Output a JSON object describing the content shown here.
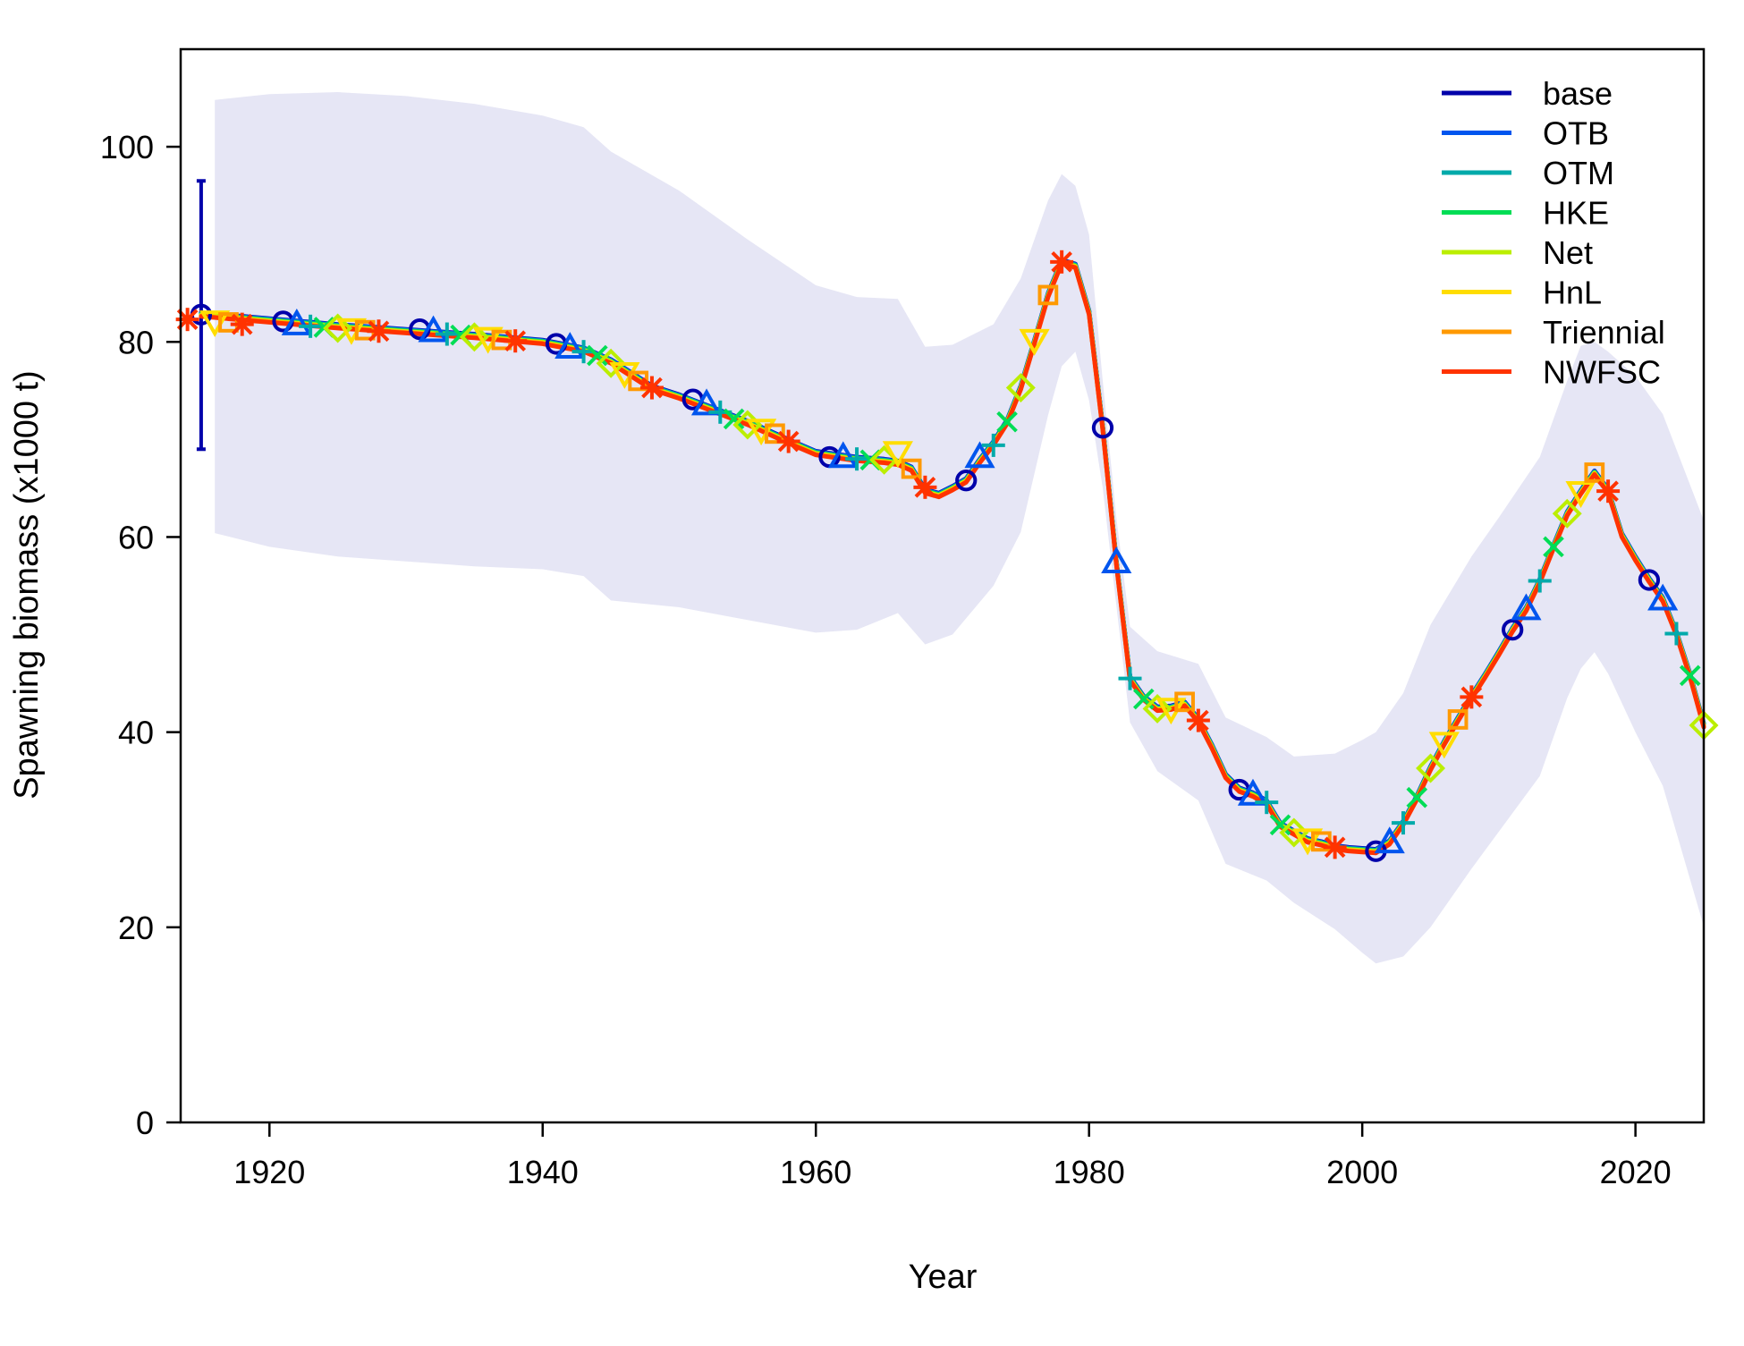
{
  "chart_data": {
    "type": "line",
    "xlabel": "Year",
    "ylabel": "Spawning biomass (x1000 t)",
    "xlim": [
      1913.5,
      2025
    ],
    "ylim": [
      0,
      110
    ],
    "x_ticks": [
      1920,
      1940,
      1960,
      1980,
      2000,
      2020
    ],
    "y_ticks": [
      0,
      20,
      40,
      60,
      80,
      100
    ],
    "grid": false,
    "legend_position": "top-right",
    "colors": {
      "band": "#e6e6f5",
      "axis": "#000000"
    },
    "trajectory": [
      [
        1915,
        82.8
      ],
      [
        1920,
        82.2
      ],
      [
        1925,
        81.6
      ],
      [
        1930,
        81.1
      ],
      [
        1935,
        80.6
      ],
      [
        1940,
        80.0
      ],
      [
        1943,
        79.2
      ],
      [
        1945,
        78.0
      ],
      [
        1948,
        75.3
      ],
      [
        1950,
        74.4
      ],
      [
        1955,
        71.7
      ],
      [
        1958,
        69.8
      ],
      [
        1960,
        68.6
      ],
      [
        1963,
        68.0
      ],
      [
        1965,
        67.8
      ],
      [
        1966,
        67.6
      ],
      [
        1967,
        67.0
      ],
      [
        1968,
        64.7
      ],
      [
        1969,
        64.3
      ],
      [
        1970,
        65.0
      ],
      [
        1971,
        65.8
      ],
      [
        1972,
        67.8
      ],
      [
        1973,
        69.6
      ],
      [
        1974,
        71.8
      ],
      [
        1975,
        75.3
      ],
      [
        1976,
        80.0
      ],
      [
        1977,
        84.8
      ],
      [
        1978,
        88.2
      ],
      [
        1979,
        87.8
      ],
      [
        1980,
        83.0
      ],
      [
        1981,
        71.2
      ],
      [
        1982,
        57.4
      ],
      [
        1983,
        45.5
      ],
      [
        1984,
        43.5
      ],
      [
        1985,
        42.4
      ],
      [
        1986,
        42.5
      ],
      [
        1987,
        42.9
      ],
      [
        1988,
        41.2
      ],
      [
        1989,
        38.5
      ],
      [
        1990,
        35.5
      ],
      [
        1991,
        34.1
      ],
      [
        1992,
        33.6
      ],
      [
        1993,
        32.8
      ],
      [
        1994,
        30.5
      ],
      [
        1995,
        29.7
      ],
      [
        1996,
        28.9
      ],
      [
        1997,
        28.6
      ],
      [
        1998,
        28.2
      ],
      [
        1999,
        28.0
      ],
      [
        2000,
        27.9
      ],
      [
        2001,
        27.8
      ],
      [
        2002,
        28.7
      ],
      [
        2003,
        30.7
      ],
      [
        2004,
        33.3
      ],
      [
        2005,
        36.3
      ],
      [
        2006,
        38.9
      ],
      [
        2007,
        41.3
      ],
      [
        2008,
        43.6
      ],
      [
        2009,
        45.8
      ],
      [
        2010,
        48.1
      ],
      [
        2011,
        50.5
      ],
      [
        2012,
        52.6
      ],
      [
        2013,
        55.5
      ],
      [
        2014,
        59.0
      ],
      [
        2015,
        62.4
      ],
      [
        2016,
        64.6
      ],
      [
        2017,
        66.6
      ],
      [
        2018,
        64.7
      ],
      [
        2019,
        60.2
      ],
      [
        2020,
        57.8
      ],
      [
        2021,
        55.6
      ],
      [
        2022,
        53.6
      ],
      [
        2023,
        50.1
      ],
      [
        2024,
        45.8
      ],
      [
        2025,
        40.7
      ]
    ],
    "interval": {
      "x": [
        1916,
        1920,
        1925,
        1930,
        1935,
        1940,
        1943,
        1945,
        1950,
        1955,
        1960,
        1963,
        1966,
        1968,
        1970,
        1973,
        1975,
        1977,
        1978,
        1979,
        1980,
        1981,
        1982,
        1983,
        1985,
        1988,
        1990,
        1993,
        1995,
        1998,
        2000,
        2001,
        2003,
        2005,
        2008,
        2010,
        2013,
        2015,
        2016,
        2017,
        2018,
        2020,
        2022,
        2025
      ],
      "upper": [
        104.8,
        105.4,
        105.6,
        105.2,
        104.4,
        103.2,
        102.0,
        99.5,
        95.5,
        90.5,
        85.8,
        84.6,
        84.4,
        79.5,
        79.7,
        81.8,
        86.5,
        94.5,
        97.2,
        96.0,
        91.0,
        76.0,
        62.0,
        50.8,
        48.3,
        47.0,
        41.5,
        39.5,
        37.5,
        37.8,
        39.2,
        40.0,
        44.0,
        51.0,
        58.0,
        62.0,
        68.2,
        76.0,
        79.6,
        80.0,
        79.0,
        76.5,
        72.6,
        61.7
      ],
      "lower": [
        60.4,
        59.0,
        58.0,
        57.5,
        57.0,
        56.7,
        56.0,
        53.5,
        52.8,
        51.5,
        50.2,
        50.5,
        52.2,
        49.0,
        50.0,
        55.0,
        60.5,
        72.5,
        77.5,
        79.0,
        74.0,
        65.0,
        53.0,
        41.0,
        36.0,
        33.0,
        26.5,
        24.8,
        22.5,
        19.8,
        17.4,
        16.3,
        17.0,
        20.0,
        26.0,
        29.8,
        35.5,
        43.5,
        46.5,
        48.2,
        46.0,
        40.0,
        34.5,
        20.1
      ]
    },
    "start_point": {
      "x": 1915,
      "y": 82.8,
      "lower": 69.0,
      "upper": 96.5
    },
    "series": [
      {
        "name": "base",
        "color": "#0000aa",
        "marker": "circle",
        "points": [
          [
            1915,
            82.8
          ],
          [
            1921,
            82.1
          ],
          [
            1931,
            81.3
          ],
          [
            1941,
            79.8
          ],
          [
            1951,
            74.1
          ],
          [
            1961,
            68.2
          ],
          [
            1971,
            65.8
          ],
          [
            1981,
            71.2
          ],
          [
            1991,
            34.1
          ],
          [
            2001,
            27.8
          ],
          [
            2011,
            50.5
          ],
          [
            2021,
            55.6
          ]
        ]
      },
      {
        "name": "OTB",
        "color": "#0055ee",
        "marker": "triangle-up",
        "points": [
          [
            1922,
            81.8
          ],
          [
            1932,
            81.1
          ],
          [
            1942,
            79.4
          ],
          [
            1952,
            73.6
          ],
          [
            1962,
            68.2
          ],
          [
            1972,
            68.2
          ],
          [
            1982,
            57.4
          ],
          [
            1992,
            33.6
          ],
          [
            2002,
            28.7
          ],
          [
            2012,
            52.6
          ],
          [
            2022,
            53.6
          ]
        ]
      },
      {
        "name": "OTM",
        "color": "#00aaaa",
        "marker": "plus",
        "points": [
          [
            1923,
            81.6
          ],
          [
            1933,
            80.8
          ],
          [
            1943,
            79.0
          ],
          [
            1953,
            72.8
          ],
          [
            1963,
            68.0
          ],
          [
            1973,
            69.4
          ],
          [
            1983,
            45.5
          ],
          [
            1993,
            32.8
          ],
          [
            2003,
            30.7
          ],
          [
            2013,
            55.5
          ],
          [
            2023,
            50.1
          ]
        ]
      },
      {
        "name": "HKE",
        "color": "#00dd55",
        "marker": "x",
        "points": [
          [
            1924,
            81.5
          ],
          [
            1934,
            80.7
          ],
          [
            1944,
            78.6
          ],
          [
            1954,
            72.1
          ],
          [
            1964,
            67.9
          ],
          [
            1974,
            71.8
          ],
          [
            1984,
            43.4
          ],
          [
            1994,
            30.5
          ],
          [
            2004,
            33.3
          ],
          [
            2014,
            59.0
          ],
          [
            2024,
            45.8
          ]
        ]
      },
      {
        "name": "Net",
        "color": "#bbee00",
        "marker": "diamond",
        "points": [
          [
            1925,
            81.4
          ],
          [
            1935,
            80.5
          ],
          [
            1945,
            77.8
          ],
          [
            1955,
            71.5
          ],
          [
            1965,
            67.9
          ],
          [
            1975,
            75.3
          ],
          [
            1985,
            42.4
          ],
          [
            1995,
            29.7
          ],
          [
            2005,
            36.3
          ],
          [
            2015,
            62.4
          ],
          [
            2025,
            40.7
          ]
        ]
      },
      {
        "name": "HnL",
        "color": "#ffdd00",
        "marker": "triangle-down",
        "points": [
          [
            1916,
            82.1
          ],
          [
            1926,
            81.3
          ],
          [
            1936,
            80.4
          ],
          [
            1946,
            76.8
          ],
          [
            1956,
            71.0
          ],
          [
            1966,
            68.7
          ],
          [
            1976,
            80.2
          ],
          [
            1986,
            42.4
          ],
          [
            1996,
            29.0
          ],
          [
            2006,
            38.9
          ],
          [
            2016,
            64.6
          ]
        ]
      },
      {
        "name": "Triennial",
        "color": "#ff9900",
        "marker": "square",
        "points": [
          [
            1917,
            82.0
          ],
          [
            1927,
            81.2
          ],
          [
            1937,
            80.2
          ],
          [
            1947,
            76.0
          ],
          [
            1957,
            70.6
          ],
          [
            1967,
            67.0
          ],
          [
            1977,
            84.8
          ],
          [
            1987,
            43.1
          ],
          [
            1997,
            28.8
          ],
          [
            2007,
            41.3
          ],
          [
            2017,
            66.6
          ]
        ]
      },
      {
        "name": "NWFSC",
        "color": "#ff3300",
        "marker": "asterisk",
        "points": [
          [
            1914,
            82.3
          ],
          [
            1918,
            81.8
          ],
          [
            1928,
            81.1
          ],
          [
            1938,
            80.1
          ],
          [
            1948,
            75.3
          ],
          [
            1958,
            69.8
          ],
          [
            1968,
            65.1
          ],
          [
            1978,
            88.2
          ],
          [
            1988,
            41.2
          ],
          [
            1998,
            28.2
          ],
          [
            2008,
            43.6
          ],
          [
            2018,
            64.7
          ]
        ]
      }
    ]
  }
}
